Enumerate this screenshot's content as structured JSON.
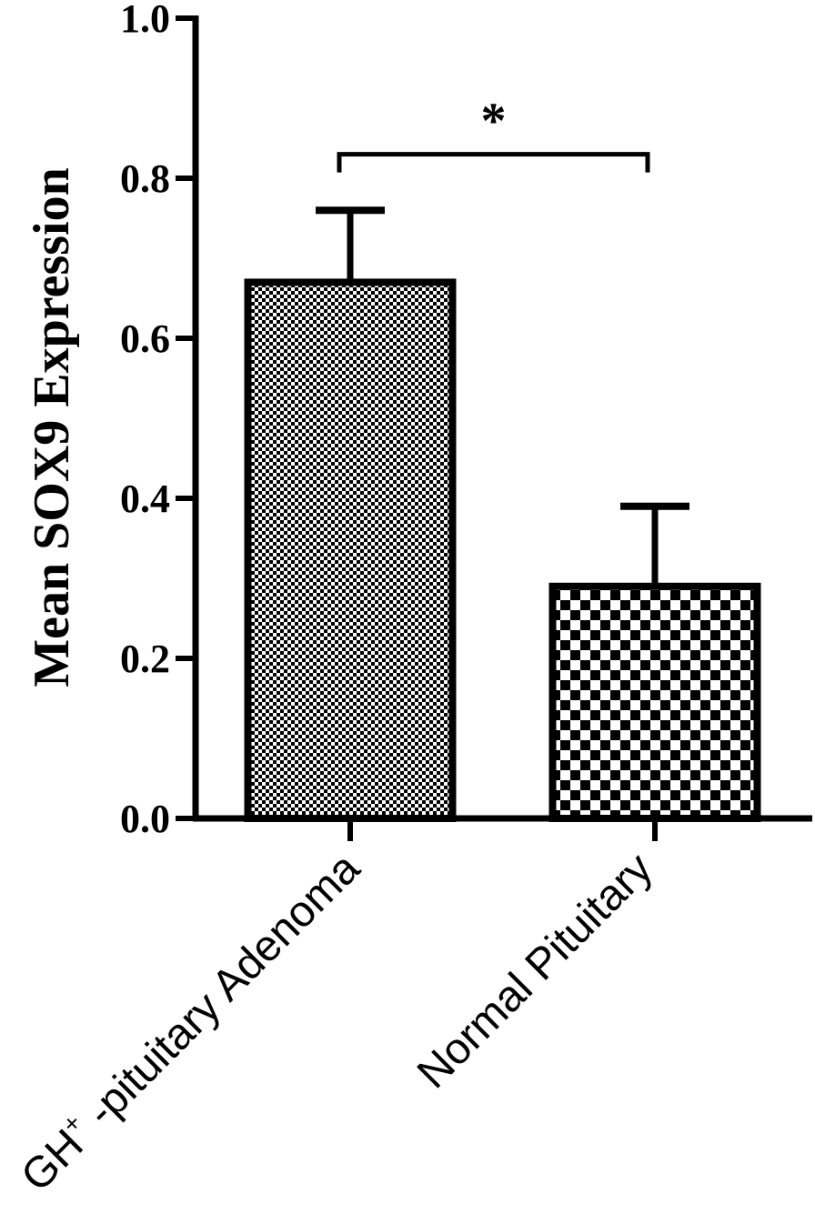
{
  "chart_data": {
    "type": "bar",
    "title": "",
    "xlabel": "",
    "ylabel": "Mean SOX9 Expression",
    "ylim": [
      0,
      1.0
    ],
    "yticks": [
      "0.0",
      "0.2",
      "0.4",
      "0.6",
      "0.8",
      "1.0"
    ],
    "categories": [
      {
        "main": "GH",
        "sup": "+",
        "rest": " -pituitary Adenoma"
      },
      {
        "main": "Normal Pituitary",
        "sup": "",
        "rest": ""
      }
    ],
    "values": [
      0.67,
      0.29
    ],
    "errors": [
      0.09,
      0.1
    ],
    "fill_patterns": [
      "fine-checker",
      "coarse-checker"
    ],
    "significance": {
      "between": [
        0,
        1
      ],
      "label": "*",
      "y": 0.83
    },
    "grid": false,
    "colors": {
      "bar_stroke": "#000000",
      "pattern_dark": "#000000",
      "pattern_light": "#ffffff"
    }
  }
}
